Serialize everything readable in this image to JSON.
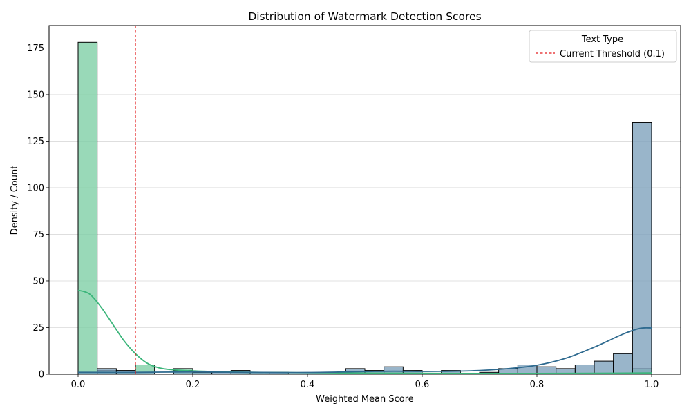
{
  "chart_data": {
    "type": "bar",
    "title": "Distribution of Watermark Detection Scores",
    "xlabel": "Weighted Mean Score",
    "ylabel": "Density / Count",
    "xlim": [
      -0.05,
      1.05
    ],
    "ylim": [
      0,
      187
    ],
    "x_ticks": [
      "0.0",
      "0.2",
      "0.4",
      "0.6",
      "0.8",
      "1.0"
    ],
    "x_tick_values": [
      0.0,
      0.2,
      0.4,
      0.6,
      0.8,
      1.0
    ],
    "y_ticks": [
      "0",
      "25",
      "50",
      "75",
      "100",
      "125",
      "150",
      "175"
    ],
    "y_tick_values": [
      0,
      25,
      50,
      75,
      100,
      125,
      150,
      175
    ],
    "grid": "horizontal",
    "bin_edges": [
      0.0,
      0.0333,
      0.0667,
      0.1,
      0.1333,
      0.1667,
      0.2,
      0.2333,
      0.2667,
      0.3,
      0.3333,
      0.3667,
      0.4,
      0.4333,
      0.4667,
      0.5,
      0.5333,
      0.5667,
      0.6,
      0.6333,
      0.6667,
      0.7,
      0.7333,
      0.7667,
      0.8,
      0.8333,
      0.8667,
      0.9,
      0.9333,
      0.9667,
      1.0
    ],
    "series": [
      {
        "color": "#7fcfa6",
        "line_color": "#3bb57a",
        "values": [
          178,
          2,
          1,
          5,
          0,
          3,
          1,
          0,
          1,
          0,
          0,
          0,
          0,
          0,
          0,
          0,
          0,
          0,
          0,
          0,
          0,
          0,
          0,
          0,
          0,
          0,
          0,
          0,
          0,
          3
        ],
        "kde_x": [
          0.0,
          0.02,
          0.04,
          0.06,
          0.08,
          0.1,
          0.12,
          0.14,
          0.16,
          0.2,
          0.25,
          0.3,
          0.4,
          0.5,
          0.6,
          0.7,
          0.8,
          0.9,
          1.0
        ],
        "kde_y": [
          45,
          43,
          36,
          27,
          18,
          11,
          6,
          3.5,
          2.5,
          1.8,
          1.3,
          1.0,
          0.8,
          0.6,
          0.5,
          0.4,
          0.4,
          0.5,
          0.7
        ]
      },
      {
        "color": "#7fa3bd",
        "line_color": "#2e6a8f",
        "values": [
          1,
          3,
          2,
          1,
          0,
          2,
          1,
          1,
          2,
          1,
          1,
          0,
          0,
          0,
          3,
          2,
          4,
          2,
          0,
          2,
          0,
          1,
          3,
          5,
          4,
          3,
          5,
          7,
          11,
          135
        ],
        "kde_x": [
          0.0,
          0.1,
          0.2,
          0.3,
          0.4,
          0.5,
          0.55,
          0.6,
          0.65,
          0.7,
          0.75,
          0.8,
          0.85,
          0.9,
          0.95,
          0.98,
          1.0
        ],
        "kde_y": [
          1.0,
          1.0,
          1.2,
          1.0,
          0.9,
          1.4,
          1.6,
          1.5,
          1.6,
          2.0,
          3.0,
          4.8,
          8.5,
          14.5,
          21.5,
          24.6,
          24.8
        ]
      }
    ],
    "threshold": {
      "x": 0.1,
      "color": "#e31a1c"
    },
    "legend": {
      "title": "Text Type",
      "entries": [
        "Current Threshold (0.1)"
      ],
      "placement": "top-right"
    }
  }
}
